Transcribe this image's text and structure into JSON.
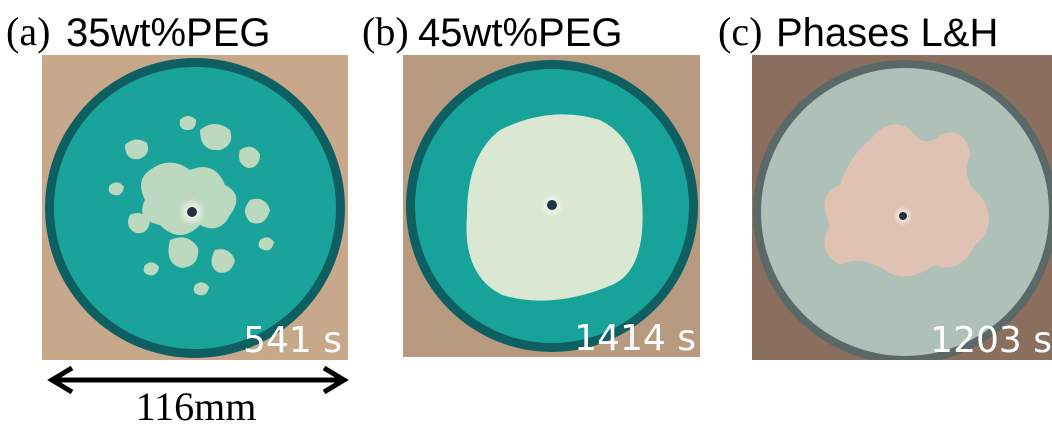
{
  "panels": [
    {
      "letter": "(a)",
      "title": "35wt%PEG",
      "time": "541 s"
    },
    {
      "letter": "(b)",
      "title": "45wt%PEG",
      "time": "1414 s"
    },
    {
      "letter": "(c)",
      "title": "Phases L&H",
      "time": "1203 s"
    }
  ],
  "scale_bar": "116mm"
}
